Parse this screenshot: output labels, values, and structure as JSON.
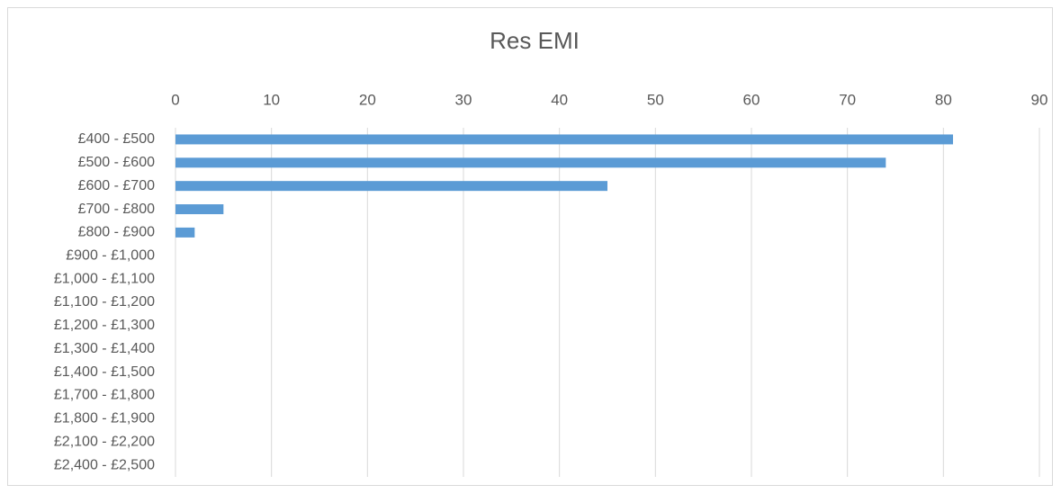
{
  "chart_data": {
    "type": "bar",
    "orientation": "horizontal",
    "title": "Res EMI",
    "categories": [
      "£400 - £500",
      "£500 - £600",
      "£600 - £700",
      "£700 - £800",
      "£800 - £900",
      "£900 - £1,000",
      "£1,000 - £1,100",
      "£1,100 - £1,200",
      "£1,200 - £1,300",
      "£1,300 - £1,400",
      "£1,400 - £1,500",
      "£1,700 - £1,800",
      "£1,800 - £1,900",
      "£2,100 - £2,200",
      "£2,400 - £2,500"
    ],
    "values": [
      81,
      74,
      45,
      5,
      2,
      0,
      0,
      0,
      0,
      0,
      0,
      0,
      0,
      0,
      0
    ],
    "color": "#5b9bd5",
    "xlim": [
      0,
      90
    ],
    "xticks": [
      0,
      10,
      20,
      30,
      40,
      50,
      60,
      70,
      80,
      90
    ],
    "grid": true
  }
}
